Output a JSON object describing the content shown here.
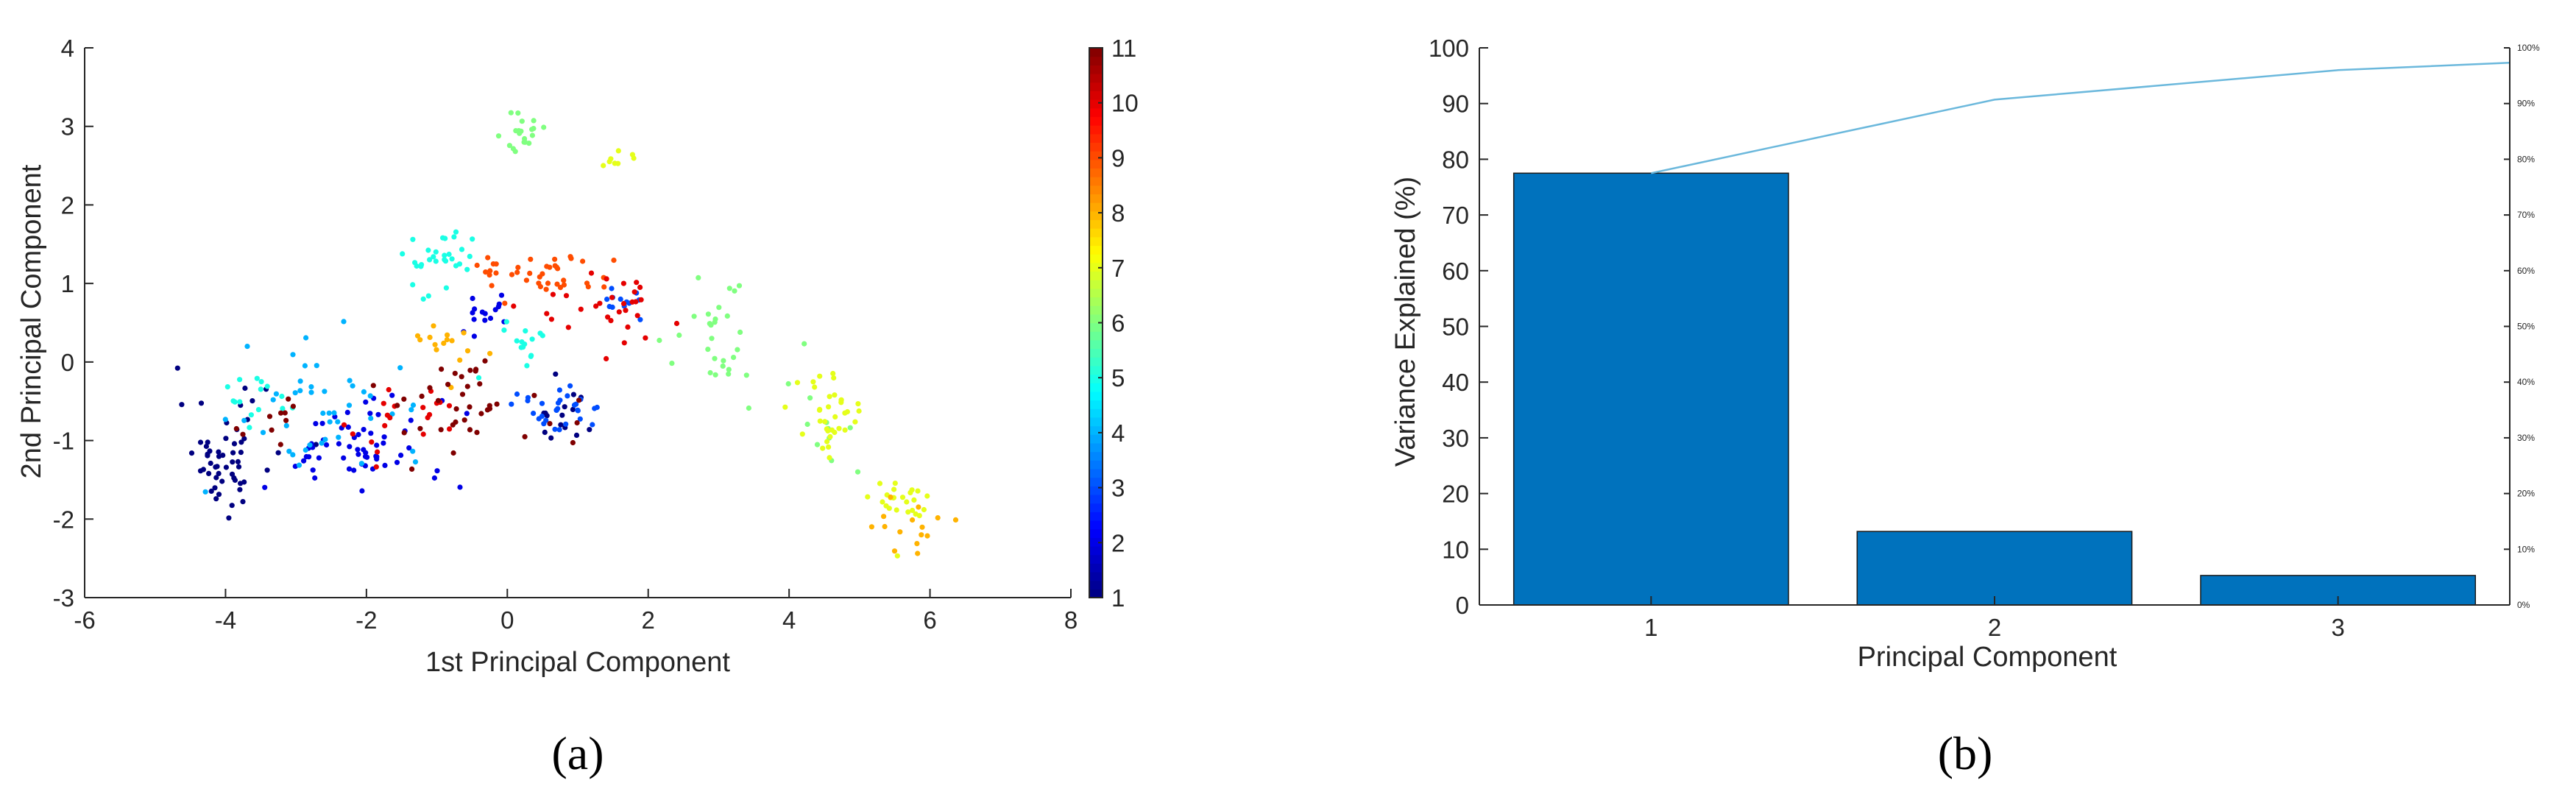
{
  "panels": {
    "a": {
      "label": "(a)"
    },
    "b": {
      "label": "(b)"
    }
  },
  "colors": {
    "bar": "#0072bd",
    "cumulative_line": "#6bb8dc",
    "axis": "#262626"
  },
  "chart_data": [
    {
      "type": "scatter",
      "panel": "(a)",
      "xlabel": "1st Principal Component",
      "ylabel": "2nd Principal Component",
      "xlim": [
        -6,
        8
      ],
      "ylim": [
        -3,
        4
      ],
      "xticks": [
        -6,
        -4,
        -2,
        0,
        2,
        4,
        6,
        8
      ],
      "yticks": [
        -3,
        -2,
        -1,
        0,
        1,
        2,
        3,
        4
      ],
      "colormap": "jet",
      "colorbar": {
        "range": [
          1,
          11
        ],
        "ticks": [
          1,
          2,
          3,
          4,
          5,
          6,
          7,
          8,
          9,
          10,
          11
        ]
      },
      "grid": false,
      "clusters": [
        {
          "class": 1,
          "center": [
            -4.0,
            -1.2
          ],
          "spread": [
            0.6,
            0.7
          ],
          "n": 55
        },
        {
          "class": 1,
          "center": [
            0.8,
            -0.7
          ],
          "spread": [
            0.4,
            0.3
          ],
          "n": 15
        },
        {
          "class": 2,
          "center": [
            -2.2,
            -1.1
          ],
          "spread": [
            1.2,
            0.6
          ],
          "n": 60
        },
        {
          "class": 2,
          "center": [
            -0.3,
            0.6
          ],
          "spread": [
            0.4,
            0.3
          ],
          "n": 15
        },
        {
          "class": 3,
          "center": [
            0.8,
            -0.6
          ],
          "spread": [
            0.6,
            0.3
          ],
          "n": 30
        },
        {
          "class": 3,
          "center": [
            1.6,
            0.8
          ],
          "spread": [
            0.3,
            0.2
          ],
          "n": 12
        },
        {
          "class": 4,
          "center": [
            -2.5,
            -0.5
          ],
          "spread": [
            1.2,
            0.6
          ],
          "n": 45
        },
        {
          "class": 5,
          "center": [
            -1.0,
            1.3
          ],
          "spread": [
            0.5,
            0.4
          ],
          "n": 30
        },
        {
          "class": 5,
          "center": [
            0.3,
            0.2
          ],
          "spread": [
            0.3,
            0.3
          ],
          "n": 15
        },
        {
          "class": 5,
          "center": [
            -3.5,
            -0.4
          ],
          "spread": [
            0.5,
            0.3
          ],
          "n": 15
        },
        {
          "class": 6,
          "center": [
            0.2,
            2.9
          ],
          "spread": [
            0.3,
            0.25
          ],
          "n": 20
        },
        {
          "class": 6,
          "center": [
            3.0,
            0.3
          ],
          "spread": [
            0.7,
            0.7
          ],
          "n": 30
        },
        {
          "class": 6,
          "center": [
            4.5,
            -0.9
          ],
          "spread": [
            0.5,
            0.5
          ],
          "n": 10
        },
        {
          "class": 7,
          "center": [
            4.6,
            -0.7
          ],
          "spread": [
            0.5,
            0.5
          ],
          "n": 35
        },
        {
          "class": 7,
          "center": [
            5.6,
            -1.8
          ],
          "spread": [
            0.5,
            0.3
          ],
          "n": 25
        },
        {
          "class": 7,
          "center": [
            1.5,
            2.6
          ],
          "spread": [
            0.3,
            0.2
          ],
          "n": 8
        },
        {
          "class": 8,
          "center": [
            5.8,
            -2.1
          ],
          "spread": [
            0.5,
            0.3
          ],
          "n": 15
        },
        {
          "class": 8,
          "center": [
            -0.8,
            0.2
          ],
          "spread": [
            0.5,
            0.3
          ],
          "n": 15
        },
        {
          "class": 9,
          "center": [
            0.5,
            1.1
          ],
          "spread": [
            1.0,
            0.3
          ],
          "n": 40
        },
        {
          "class": 10,
          "center": [
            1.3,
            0.7
          ],
          "spread": [
            0.9,
            0.5
          ],
          "n": 30
        },
        {
          "class": 10,
          "center": [
            -1.5,
            -0.7
          ],
          "spread": [
            1.0,
            0.6
          ],
          "n": 20
        },
        {
          "class": 11,
          "center": [
            -0.5,
            -0.5
          ],
          "spread": [
            1.2,
            0.6
          ],
          "n": 40
        },
        {
          "class": 11,
          "center": [
            -3.3,
            -0.8
          ],
          "spread": [
            0.4,
            0.3
          ],
          "n": 10
        }
      ]
    },
    {
      "type": "bar",
      "panel": "(b)",
      "xlabel": "Principal Component",
      "ylabel": "Variance Explained (%)",
      "categories": [
        "1",
        "2",
        "3"
      ],
      "values": [
        77.5,
        13.2,
        5.3
      ],
      "cumulative": [
        77.5,
        90.7,
        96.0
      ],
      "ylim": [
        0,
        100
      ],
      "yticks": [
        0,
        10,
        20,
        30,
        40,
        50,
        60,
        70,
        80,
        90,
        100
      ],
      "right_ticks": [
        "0%",
        "10%",
        "20%",
        "30%",
        "40%",
        "50%",
        "60%",
        "70%",
        "80%",
        "90%",
        "100%"
      ],
      "right_axis_max": 100,
      "grid": false
    }
  ]
}
